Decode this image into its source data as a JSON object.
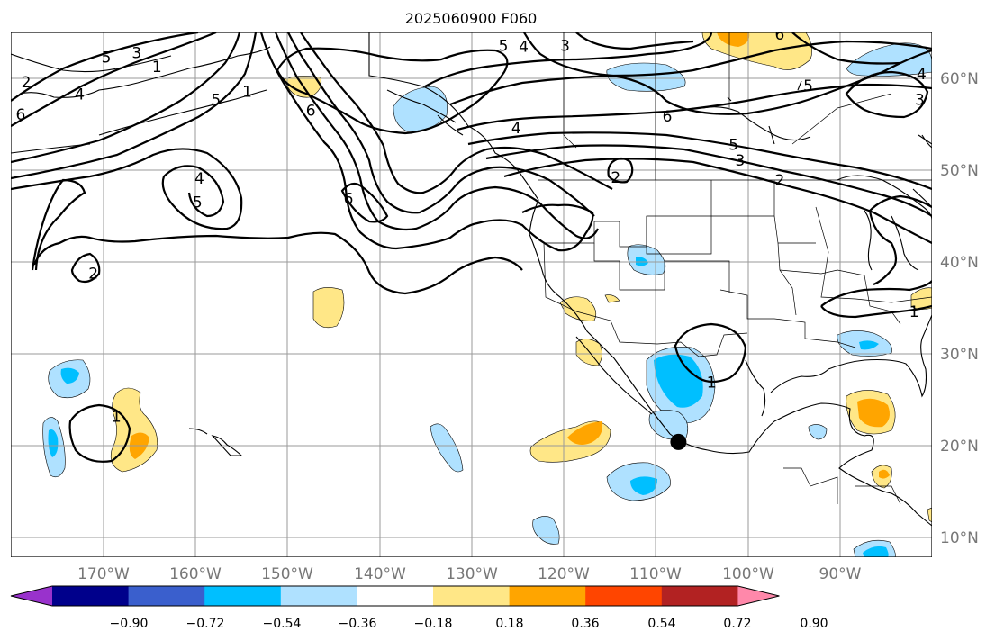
{
  "title": "2025060900 F060",
  "lon_labels": [
    "170°W",
    "160°W",
    "150°W",
    "140°W",
    "130°W",
    "120°W",
    "110°W",
    "100°W",
    "90°W"
  ],
  "lat_labels": [
    "60°N",
    "50°N",
    "40°N",
    "30°N",
    "20°N",
    "10°N"
  ],
  "colorbar": {
    "colors": [
      "#9932cc",
      "#00008b",
      "#3a5fcd",
      "#00bfff",
      "#afe1ff",
      "#ffffff",
      "#ffe787",
      "#ffa500",
      "#ff4500",
      "#b22222",
      "#ff88aa"
    ],
    "labels": [
      "−0.90",
      "−0.72",
      "−0.54",
      "−0.36",
      "−0.18",
      "0.18",
      "0.36",
      "0.54",
      "0.72",
      "0.90"
    ]
  },
  "contour_labels": [
    {
      "text": "5",
      "lon": -169.7,
      "lat": 62.2
    },
    {
      "text": "4",
      "lon": -172.6,
      "lat": 58.2
    },
    {
      "text": "6",
      "lon": -179,
      "lat": 56
    },
    {
      "text": "2",
      "lon": -178.4,
      "lat": 59.5
    },
    {
      "text": "3",
      "lon": -166.4,
      "lat": 62.7
    },
    {
      "text": "1",
      "lon": -164.2,
      "lat": 61.2
    },
    {
      "text": "5",
      "lon": -157.8,
      "lat": 57.6
    },
    {
      "text": "6",
      "lon": -147.5,
      "lat": 56.4
    },
    {
      "text": "1",
      "lon": -154.4,
      "lat": 58.5
    },
    {
      "text": "4",
      "lon": -159.6,
      "lat": 49
    },
    {
      "text": "5",
      "lon": -159.8,
      "lat": 46.4
    },
    {
      "text": "6",
      "lon": -143.4,
      "lat": 46.8
    },
    {
      "text": "2",
      "lon": -171.1,
      "lat": 38.7
    },
    {
      "text": "5",
      "lon": -126.6,
      "lat": 63.5
    },
    {
      "text": "4",
      "lon": -124.4,
      "lat": 63.4
    },
    {
      "text": "3",
      "lon": -119.9,
      "lat": 63.5
    },
    {
      "text": "4",
      "lon": -125.2,
      "lat": 54.5
    },
    {
      "text": "6",
      "lon": -108.8,
      "lat": 55.8
    },
    {
      "text": "5",
      "lon": -101.6,
      "lat": 52.7
    },
    {
      "text": "3",
      "lon": -100.9,
      "lat": 51
    },
    {
      "text": "2",
      "lon": -96.6,
      "lat": 48.8
    },
    {
      "text": "6",
      "lon": -96.6,
      "lat": 64.7
    },
    {
      "text": "5",
      "lon": -93.5,
      "lat": 59.1
    },
    {
      "text": "4",
      "lon": -81.2,
      "lat": 60.4
    },
    {
      "text": "3",
      "lon": -81.4,
      "lat": 57.6
    },
    {
      "text": "2",
      "lon": -114.4,
      "lat": 49.1
    },
    {
      "text": "1",
      "lon": -82,
      "lat": 34.5
    },
    {
      "text": "1",
      "lon": -104,
      "lat": 26.8
    },
    {
      "text": "1",
      "lon": -168.6,
      "lat": 23.1
    }
  ],
  "marker": {
    "lon": -107.6,
    "lat": 20.4
  }
}
